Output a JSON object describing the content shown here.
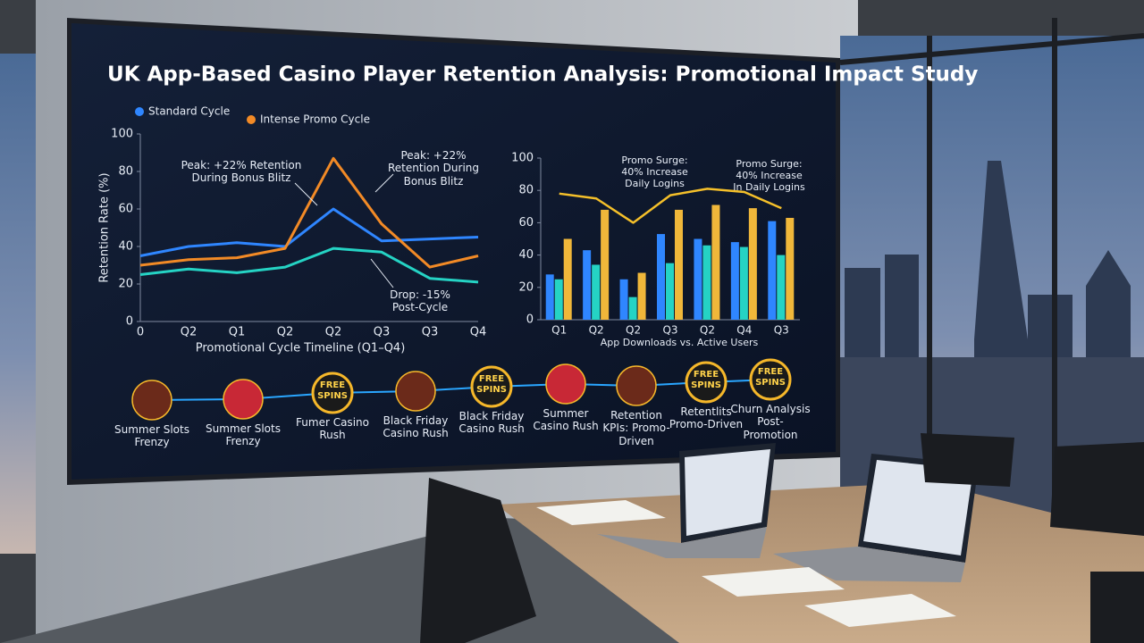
{
  "screen_title": "UK App-Based Casino Player Retention Analysis: Promotional Impact Study",
  "chart_data": [
    {
      "type": "line",
      "y_label": "Retention Rate (%)",
      "x_label": "Promotional Cycle Timeline (Q1–Q4)",
      "categories": [
        "0",
        "Q2",
        "Q1",
        "Q2",
        "Q2",
        "Q3",
        "Q3",
        "Q4"
      ],
      "series": [
        {
          "name": "Standard Cycle",
          "color": "#2f86ff",
          "values": [
            35,
            40,
            42,
            40,
            60,
            43,
            44,
            45
          ]
        },
        {
          "name": "Intense Promo Cycle",
          "color": "#f28a26",
          "values": [
            30,
            33,
            34,
            39,
            87,
            52,
            29,
            35
          ]
        },
        {
          "color": "#25d3c4",
          "values": [
            25,
            28,
            26,
            29,
            39,
            37,
            23,
            21
          ]
        }
      ],
      "ylim": [
        0,
        100
      ],
      "yticks": [
        0,
        20,
        40,
        60,
        80,
        100
      ],
      "grid": false,
      "annotations": [
        "Peak: +22% Retention During Bonus Blitz",
        "Peak: +22% Retention During Bonus Blitz",
        "Drop: -15% Post-Cycle"
      ]
    },
    {
      "type": "bar-line",
      "x_label": "App Downloads vs. Active Users",
      "categories": [
        "Q1",
        "Q2",
        "Q2",
        "Q3",
        "Q2",
        "Q4",
        "Q3"
      ],
      "series": [
        {
          "color": "#2f86ff",
          "values": [
            28,
            43,
            25,
            53,
            50,
            48,
            61
          ]
        },
        {
          "color": "#25d3c4",
          "values": [
            25,
            34,
            14,
            35,
            46,
            45,
            40
          ]
        },
        {
          "color": "#f0b73a",
          "values": [
            50,
            68,
            29,
            68,
            71,
            69,
            63
          ]
        },
        {
          "type": "line",
          "color": "#f5c02a",
          "values": [
            78,
            75,
            60,
            77,
            81,
            79,
            69
          ]
        }
      ],
      "ylim": [
        0,
        100
      ],
      "yticks": [
        0,
        20,
        40,
        60,
        80,
        100
      ],
      "grid": false,
      "annotations": [
        "Promo Surge: 40% Increase Daily Logins",
        "Promo Surge: 40% Increase In Daily Logins"
      ]
    }
  ],
  "timeline": [
    {
      "label": "Summer Slots Frenzy"
    },
    {
      "label": "Summer Slots Frenzy"
    },
    {
      "label": "Fumer Casino Rush",
      "badge": "FREE SPINS"
    },
    {
      "label": "Black Friday Casino Rush"
    },
    {
      "label": "Black Friday Casino Rush",
      "badge": "FREE SPINS"
    },
    {
      "label": "Summer Casino Rush"
    },
    {
      "label": "Retention KPIs: Promo-Driven"
    },
    {
      "label": "Retentlits Promo-Driven",
      "badge": "FREE SPINS"
    },
    {
      "label": "Churn Analysis Post-Promotion",
      "badge": "FREE SPINS"
    }
  ]
}
